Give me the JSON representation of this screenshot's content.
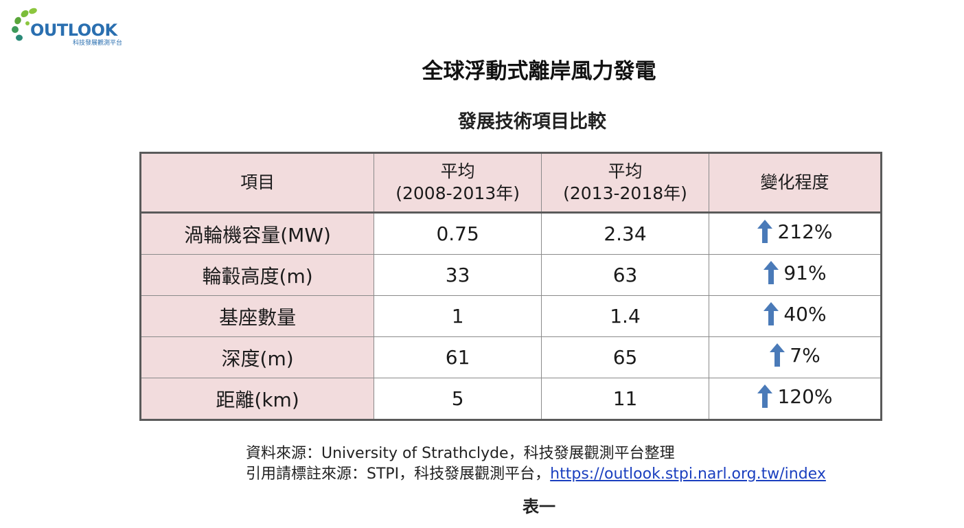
{
  "logo": {
    "text": "OUTLOOK",
    "subtitle": "科技發展觀測平台"
  },
  "title": "全球浮動式離岸風力發電",
  "subtitle": "發展技術項目比較",
  "table": {
    "headers": [
      {
        "line1": "項目",
        "line2": ""
      },
      {
        "line1": "平均",
        "line2": "(2008-2013年)"
      },
      {
        "line1": "平均",
        "line2": "(2013-2018年)"
      },
      {
        "line1": "變化程度",
        "line2": ""
      }
    ],
    "rows": [
      {
        "item": "渦輪機容量(MW)",
        "avg1": "0.75",
        "avg2": "2.34",
        "change": "212%"
      },
      {
        "item": "輪轂高度(m)",
        "avg1": "33",
        "avg2": "63",
        "change": "91%"
      },
      {
        "item": "基座數量",
        "avg1": "1",
        "avg2": "1.4",
        "change": "40%"
      },
      {
        "item": "深度(m)",
        "avg1": "61",
        "avg2": "65",
        "change": "7%"
      },
      {
        "item": "距離(km)",
        "avg1": "5",
        "avg2": "11",
        "change": "120%"
      }
    ],
    "arrow_icon": "up-arrow-icon",
    "arrow_color": "#4a7ab8",
    "header_bg": "#f2dcdd"
  },
  "source": {
    "line1": "資料來源：University of Strathclyde，科技發展觀測平台整理",
    "line2_prefix": "引用請標註來源：STPI，科技發展觀測平台，",
    "link": "https://outlook.stpi.narl.org.tw/index"
  },
  "caption": "表一"
}
